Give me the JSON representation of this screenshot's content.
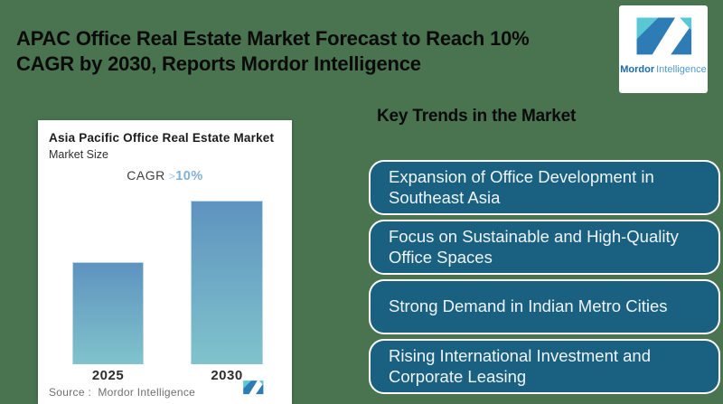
{
  "background_color": "#4A7350",
  "header": {
    "title": "APAC Office Real Estate Market Forecast to Reach 10%\nCAGR by 2030, Reports Mordor Intelligence"
  },
  "logo": {
    "brand_bold": "Mordor",
    "brand_light": "Intelligence",
    "teal": "#58C8D4",
    "blue": "#2E7CB5"
  },
  "chart_card": {
    "title": "Asia Pacific Office Real Estate Market",
    "subtitle": "Market Size",
    "cagr_label": "CAGR",
    "cagr_gt": ">",
    "cagr_value": "10%",
    "years": [
      "2025",
      "2030"
    ],
    "source_label": "Source :  Mordor Intelligence"
  },
  "chart_data": {
    "type": "bar",
    "title": "Asia Pacific Office Real Estate Market",
    "subtitle": "Market Size",
    "categories": [
      "2025",
      "2030"
    ],
    "values": [
      1,
      1.6
    ],
    "values_note": "No numeric axis shown; bar heights are relative (2030 is about 1.6x the 2025 bar). Annotation states CAGR >10%.",
    "annotation": "CAGR >10%",
    "xlabel": "",
    "ylabel": "",
    "grid": false,
    "legend": false,
    "bar_gradient_top": "#5E93BF",
    "bar_gradient_bottom": "#80C3CC",
    "source": "Source :  Mordor Intelligence"
  },
  "trends": {
    "heading": "Key Trends in the Market",
    "box_color": "#1A6080",
    "items": [
      "Expansion of Office Development in\nSoutheast Asia",
      "Focus on Sustainable and High-Quality\nOffice Spaces",
      "Strong Demand in Indian Metro Cities",
      "Rising International Investment and\nCorporate Leasing"
    ]
  }
}
